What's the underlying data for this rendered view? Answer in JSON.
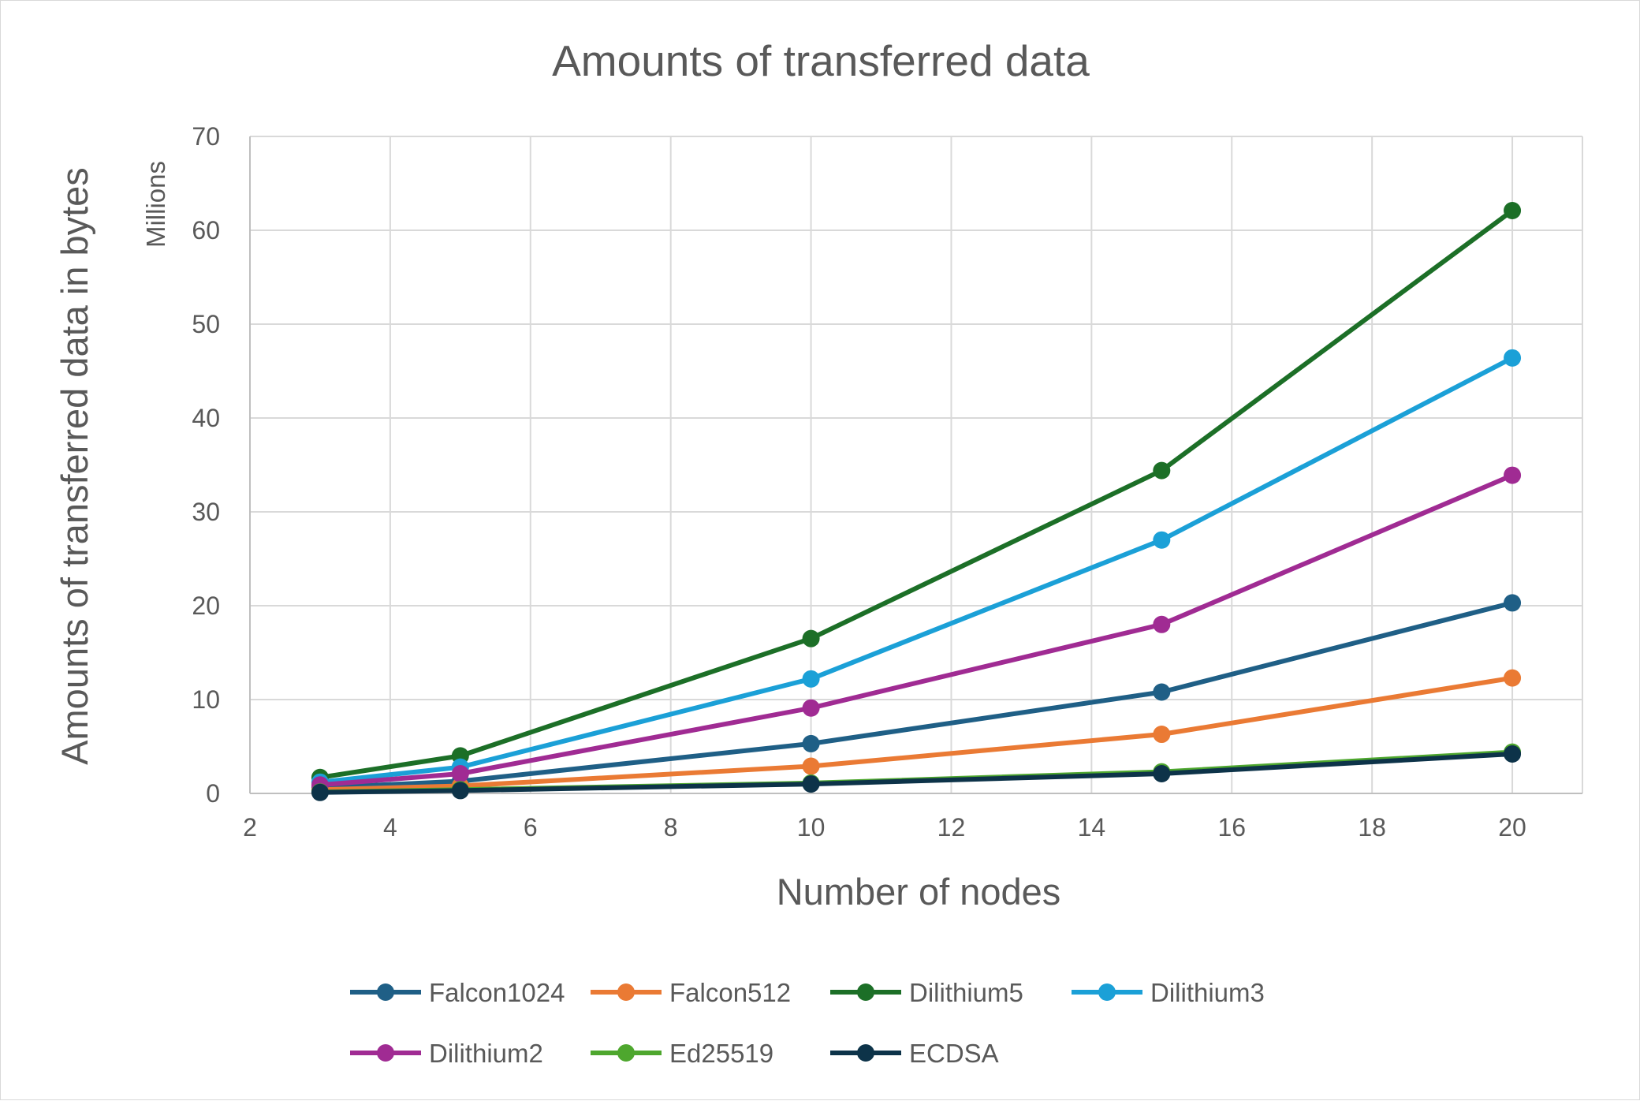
{
  "chart_data": {
    "type": "line",
    "title": "Amounts of transferred data",
    "xlabel": "Number of nodes",
    "ylabel": "Amounts of transferred data in bytes",
    "y_units": "Millions",
    "xlim": [
      2,
      21
    ],
    "ylim": [
      0,
      70
    ],
    "x_ticks": [
      "2",
      "4",
      "6",
      "8",
      "10",
      "12",
      "14",
      "16",
      "18",
      "20"
    ],
    "y_ticks": [
      "0",
      "10",
      "20",
      "30",
      "40",
      "50",
      "60",
      "70"
    ],
    "grid": true,
    "legend_position": "bottom",
    "x": [
      3,
      5,
      10,
      15,
      20
    ],
    "series": [
      {
        "name": "Falcon1024",
        "color": "#1f5f86",
        "values": [
          0.6,
          1.3,
          5.3,
          10.8,
          20.3
        ]
      },
      {
        "name": "Falcon512",
        "color": "#ea7a34",
        "values": [
          0.4,
          0.8,
          2.9,
          6.3,
          12.3
        ]
      },
      {
        "name": "Dilithium5",
        "color": "#1c6f27",
        "values": [
          1.7,
          4.0,
          16.5,
          34.4,
          62.1
        ]
      },
      {
        "name": "Dilithium3",
        "color": "#1ba0d7",
        "values": [
          1.2,
          2.8,
          12.2,
          27.0,
          46.4
        ]
      },
      {
        "name": "Dilithium2",
        "color": "#a02b93",
        "values": [
          0.9,
          2.1,
          9.1,
          18.0,
          33.9
        ]
      },
      {
        "name": "Ed25519",
        "color": "#4ea72e",
        "values": [
          0.15,
          0.4,
          1.1,
          2.3,
          4.4
        ]
      },
      {
        "name": "ECDSA",
        "color": "#0d3349",
        "values": [
          0.1,
          0.3,
          1.0,
          2.1,
          4.2
        ]
      }
    ]
  }
}
